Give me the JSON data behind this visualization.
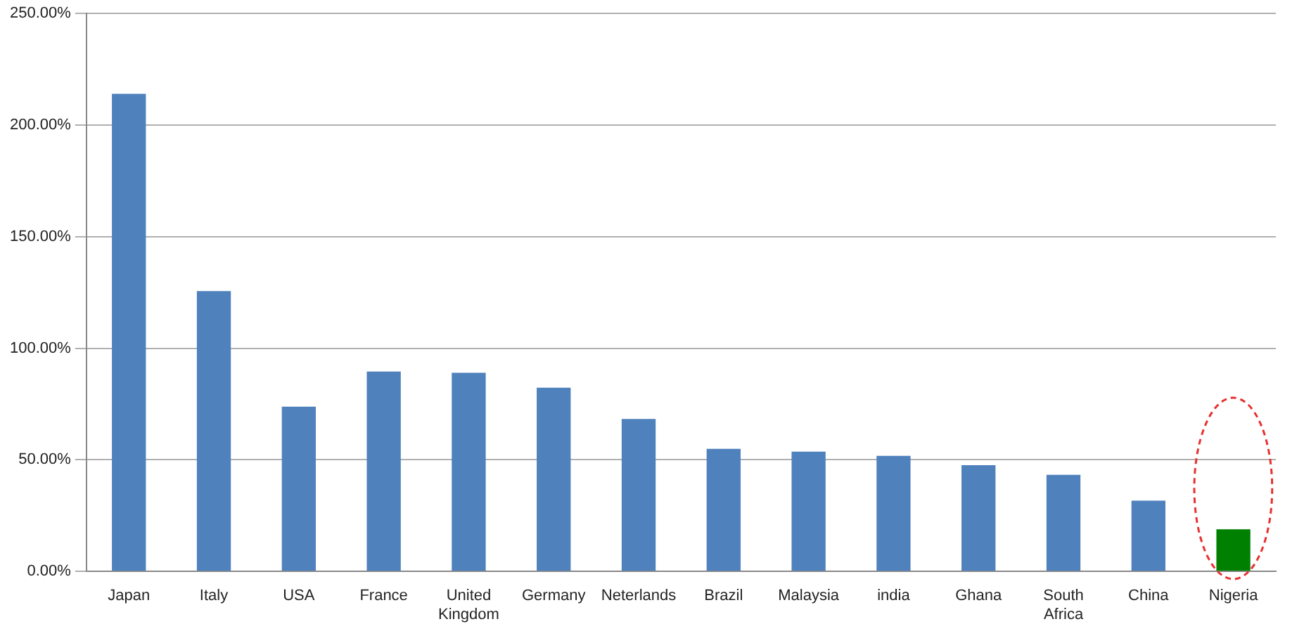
{
  "chart_data": {
    "type": "bar",
    "categories": [
      "Japan",
      "Italy",
      "USA",
      "France",
      "United Kingdom",
      "Germany",
      "Neterlands",
      "Brazil",
      "Malaysia",
      "india",
      "Ghana",
      "South Africa",
      "China",
      "Nigeria"
    ],
    "values": [
      214,
      125.6,
      73.8,
      89.6,
      89,
      82.3,
      68.3,
      54.9,
      53.7,
      51.8,
      47.6,
      43.3,
      31.7,
      18.9
    ],
    "colors": [
      "#4f81bd",
      "#4f81bd",
      "#4f81bd",
      "#4f81bd",
      "#4f81bd",
      "#4f81bd",
      "#4f81bd",
      "#4f81bd",
      "#4f81bd",
      "#4f81bd",
      "#4f81bd",
      "#4f81bd",
      "#4f81bd",
      "#008000"
    ],
    "ylim": [
      0,
      250
    ],
    "yticks": [
      {
        "value": 0,
        "label": "0.00%"
      },
      {
        "value": 50,
        "label": "50.00%"
      },
      {
        "value": 100,
        "label": "100.00%"
      },
      {
        "value": 150,
        "label": "150.00%"
      },
      {
        "value": 200,
        "label": "200.00%"
      },
      {
        "value": 250,
        "label": "250.00%"
      }
    ],
    "grid": "y",
    "legend": false
  }
}
